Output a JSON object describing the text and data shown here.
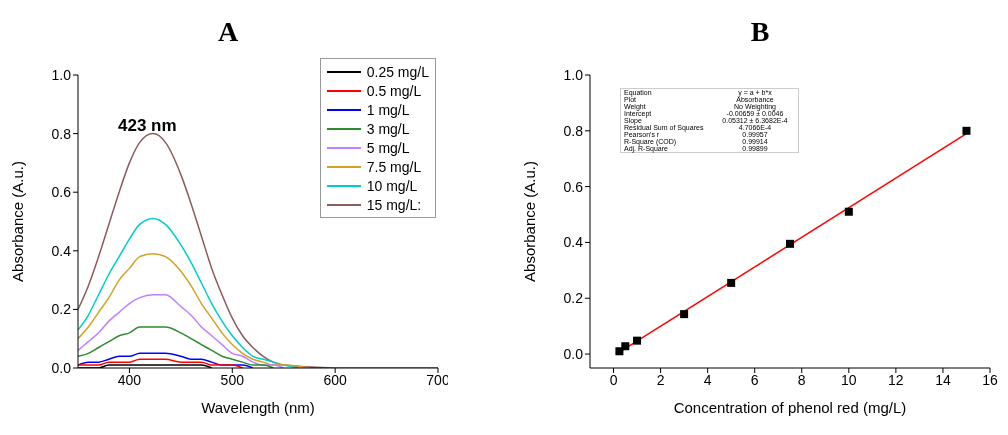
{
  "chart_data": [
    {
      "type": "line",
      "title": "A",
      "xlabel": "Wavelength (nm)",
      "ylabel": "Absorbance (A.u.)",
      "series": [
        {
          "name": "0.25 mg/L",
          "color": "#000000",
          "x": [
            350,
            360,
            370,
            380,
            390,
            400,
            410,
            423,
            435,
            450,
            460,
            470,
            480
          ],
          "values": [
            0,
            0,
            0,
            0.01,
            0.01,
            0.01,
            0.01,
            0.01,
            0.01,
            0.01,
            0.01,
            0.01,
            0
          ]
        },
        {
          "name": "0.5 mg/L",
          "color": "#ff0000",
          "x": [
            350,
            360,
            370,
            380,
            390,
            400,
            410,
            423,
            435,
            450,
            460,
            470,
            480,
            490,
            500,
            510
          ],
          "values": [
            0.01,
            0.01,
            0.01,
            0.02,
            0.02,
            0.02,
            0.03,
            0.03,
            0.03,
            0.02,
            0.02,
            0.02,
            0.01,
            0.01,
            0.01,
            0
          ]
        },
        {
          "name": "1 mg/L",
          "color": "#0000ff",
          "x": [
            350,
            360,
            370,
            380,
            390,
            400,
            410,
            423,
            435,
            450,
            460,
            470,
            480,
            490,
            500,
            510,
            520
          ],
          "values": [
            0.01,
            0.02,
            0.02,
            0.03,
            0.04,
            0.04,
            0.05,
            0.05,
            0.05,
            0.04,
            0.03,
            0.03,
            0.02,
            0.01,
            0.01,
            0.01,
            0
          ]
        },
        {
          "name": "3 mg/L",
          "color": "#2e8b2e",
          "x": [
            350,
            360,
            370,
            380,
            390,
            400,
            410,
            423,
            435,
            450,
            460,
            470,
            480,
            490,
            500,
            510,
            520,
            530,
            540
          ],
          "values": [
            0.04,
            0.05,
            0.07,
            0.09,
            0.11,
            0.12,
            0.14,
            0.14,
            0.14,
            0.12,
            0.1,
            0.08,
            0.06,
            0.04,
            0.03,
            0.02,
            0.01,
            0.01,
            0
          ]
        },
        {
          "name": "5 mg/L",
          "color": "#bf7fff",
          "x": [
            350,
            360,
            370,
            380,
            390,
            400,
            410,
            423,
            435,
            450,
            460,
            470,
            480,
            490,
            500,
            510,
            520,
            530,
            540,
            550
          ],
          "values": [
            0.06,
            0.09,
            0.12,
            0.16,
            0.19,
            0.22,
            0.24,
            0.25,
            0.25,
            0.21,
            0.18,
            0.14,
            0.11,
            0.08,
            0.05,
            0.04,
            0.02,
            0.01,
            0.01,
            0
          ]
        },
        {
          "name": "7.5 mg/L",
          "color": "#d4a020",
          "x": [
            350,
            360,
            370,
            380,
            390,
            400,
            410,
            423,
            435,
            450,
            460,
            470,
            480,
            490,
            500,
            510,
            520,
            530,
            540,
            550,
            575
          ],
          "values": [
            0.1,
            0.14,
            0.19,
            0.24,
            0.3,
            0.34,
            0.38,
            0.39,
            0.38,
            0.33,
            0.28,
            0.22,
            0.17,
            0.12,
            0.08,
            0.05,
            0.03,
            0.02,
            0.01,
            0.01,
            0
          ]
        },
        {
          "name": "10 mg/L",
          "color": "#00cccc",
          "x": [
            350,
            360,
            370,
            380,
            390,
            400,
            410,
            423,
            435,
            450,
            460,
            470,
            480,
            490,
            500,
            510,
            520,
            530,
            540,
            550,
            565
          ],
          "values": [
            0.13,
            0.18,
            0.25,
            0.32,
            0.38,
            0.44,
            0.49,
            0.51,
            0.49,
            0.42,
            0.36,
            0.29,
            0.22,
            0.16,
            0.11,
            0.07,
            0.04,
            0.03,
            0.02,
            0.01,
            0
          ]
        },
        {
          "name": "15 mg/L:",
          "color": "#8c5c5c",
          "x": [
            350,
            360,
            370,
            380,
            390,
            400,
            410,
            423,
            435,
            450,
            460,
            470,
            480,
            490,
            500,
            510,
            520,
            530,
            540,
            550,
            600,
            650,
            700
          ],
          "values": [
            0.2,
            0.28,
            0.38,
            0.49,
            0.6,
            0.7,
            0.77,
            0.8,
            0.77,
            0.66,
            0.56,
            0.45,
            0.34,
            0.25,
            0.17,
            0.11,
            0.07,
            0.04,
            0.02,
            0.01,
            0,
            0,
            0
          ]
        }
      ],
      "xlim": [
        350,
        700
      ],
      "xticks": [
        400,
        500,
        600,
        700
      ],
      "ylim": [
        0,
        1
      ],
      "yticks": [
        {
          "value": 0,
          "label": "0.0"
        },
        {
          "value": 0.2,
          "label": "0.2"
        },
        {
          "value": 0.4,
          "label": "0.4"
        },
        {
          "value": 0.6,
          "label": "0.6"
        },
        {
          "value": 0.8,
          "label": "0.8"
        },
        {
          "value": 1,
          "label": "1.0"
        }
      ],
      "annotations": [
        "423 nm"
      ],
      "legend": "top right",
      "grid": false,
      "line_style": "solid",
      "marker": "none"
    },
    {
      "type": "scatter",
      "title": "B",
      "xlabel": "Concentration of phenol red (mg/L)",
      "ylabel": "Absorbance (A.u.)",
      "series": [
        {
          "color": "#000000",
          "marker": "square",
          "x": [
            0.25,
            0.5,
            1,
            3,
            5,
            7.5,
            10,
            15
          ],
          "values": [
            0.01,
            0.028,
            0.048,
            0.143,
            0.255,
            0.395,
            0.51,
            0.8
          ]
        },
        {
          "type": "line",
          "color": "#ff0000",
          "line_style": "solid",
          "x": [
            0.25,
            15
          ],
          "values": [
            0.007,
            0.79
          ]
        }
      ],
      "xlim": [
        -1,
        16
      ],
      "xticks": [
        0,
        2,
        4,
        6,
        8,
        10,
        12,
        14,
        16
      ],
      "ylim": [
        -0.05,
        1
      ],
      "yticks": [
        {
          "value": 0,
          "label": "0.0"
        },
        {
          "value": 0.2,
          "label": "0.2"
        },
        {
          "value": 0.4,
          "label": "0.4"
        },
        {
          "value": 0.6,
          "label": "0.6"
        },
        {
          "value": 0.8,
          "label": "0.8"
        },
        {
          "value": 1,
          "label": "1.0"
        }
      ],
      "annotations": [
        "Equation",
        "y = a + b*x",
        "Plot",
        "Absorbance",
        "Weight",
        "No Weighting",
        "Intercept",
        "-0.00659 ± 0.0046",
        "Slope",
        "0.05312 ± 6.3682E-4",
        "Residual Sum of Squares",
        "4.7066E-4",
        "Pearson's r",
        "0.99957",
        "R-Square (COD)",
        "0.99914",
        "Adj. R-Square",
        "0.99899"
      ],
      "legend": false,
      "grid": false
    }
  ]
}
